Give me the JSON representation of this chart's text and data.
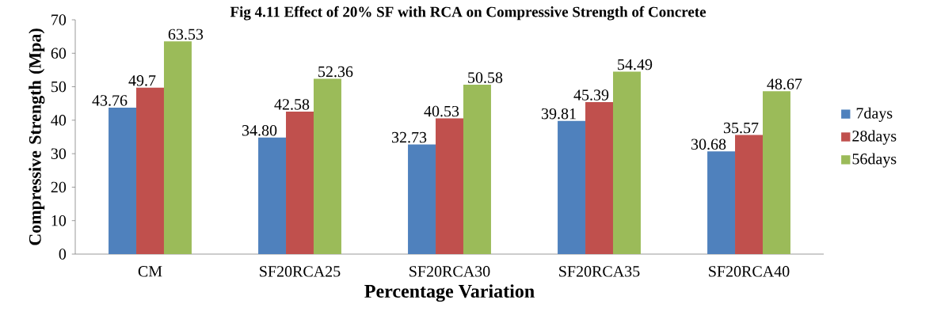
{
  "chart_data": {
    "type": "bar",
    "title": "Fig 4.11 Effect of 20% SF with RCA on Compressive Strength of Concrete",
    "xlabel": "Percentage Variation",
    "ylabel": "Compressive Strength (Mpa)",
    "categories": [
      "CM",
      "SF20RCA25",
      "SF20RCA30",
      "SF20RCA35",
      "SF20RCA40"
    ],
    "series": [
      {
        "name": "7days",
        "color": "#4f81bd",
        "values": [
          43.76,
          34.8,
          32.73,
          39.81,
          30.68
        ],
        "value_labels": [
          "43.76",
          "34.80",
          "32.73",
          "39.81",
          "30.68"
        ]
      },
      {
        "name": "28days",
        "color": "#c0504d",
        "values": [
          49.7,
          42.58,
          40.53,
          45.39,
          35.57
        ],
        "value_labels": [
          "49.7",
          "42.58",
          "40.53",
          "45.39",
          "35.57"
        ]
      },
      {
        "name": "56days",
        "color": "#9bbb59",
        "values": [
          63.53,
          52.36,
          50.58,
          54.49,
          48.67
        ],
        "value_labels": [
          "63.53",
          "52.36",
          "50.58",
          "54.49",
          "48.67"
        ]
      }
    ],
    "ylim": [
      0,
      70
    ],
    "yticks": [
      0,
      10,
      20,
      30,
      40,
      50,
      60,
      70
    ],
    "grid": false,
    "legend": "right"
  }
}
